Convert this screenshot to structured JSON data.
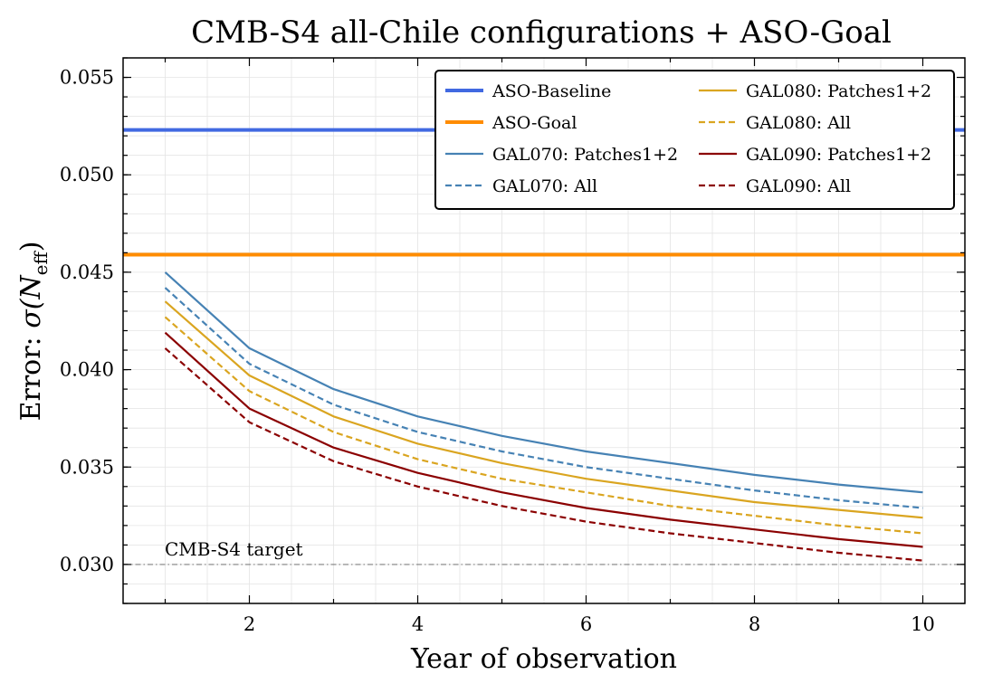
{
  "chart_data": {
    "type": "line",
    "title": "CMB-S4 all-Chile configurations + ASO-Goal",
    "xlabel": "Year of observation",
    "ylabel_prefix": "Error: ",
    "ylabel_math": "σ(N",
    "ylabel_sub": "eff",
    "ylabel_close": ")",
    "xlim": [
      0.5,
      10.5
    ],
    "ylim": [
      0.028,
      0.056
    ],
    "x_ticks": [
      2,
      4,
      6,
      8,
      10
    ],
    "y_ticks": [
      0.03,
      0.035,
      0.04,
      0.045,
      0.05,
      0.055
    ],
    "x_tick_labels": [
      "2",
      "4",
      "6",
      "8",
      "10"
    ],
    "y_tick_labels": [
      "0.030",
      "0.035",
      "0.040",
      "0.045",
      "0.050",
      "0.055"
    ],
    "grid": true,
    "legend_placement": "top-right",
    "x": [
      1,
      2,
      3,
      4,
      5,
      6,
      7,
      8,
      9,
      10
    ],
    "hlines": [
      {
        "name": "ASO-Baseline",
        "value": 0.0523,
        "color": "#4169e1",
        "style": "solid"
      },
      {
        "name": "ASO-Goal",
        "value": 0.0459,
        "color": "#ff8c00",
        "style": "solid"
      }
    ],
    "series": [
      {
        "name": "GAL070: Patches1+2",
        "color": "#4682b4",
        "style": "solid",
        "values": [
          0.045,
          0.0411,
          0.039,
          0.0376,
          0.0366,
          0.0358,
          0.0352,
          0.0346,
          0.0341,
          0.0337
        ]
      },
      {
        "name": "GAL070: All",
        "color": "#4682b4",
        "style": "dashed",
        "values": [
          0.0442,
          0.0403,
          0.0382,
          0.0368,
          0.0358,
          0.035,
          0.0344,
          0.0338,
          0.0333,
          0.0329
        ]
      },
      {
        "name": "GAL080: Patches1+2",
        "color": "#daa520",
        "style": "solid",
        "values": [
          0.0435,
          0.0397,
          0.0376,
          0.0362,
          0.0352,
          0.0344,
          0.0338,
          0.0332,
          0.0328,
          0.0324
        ]
      },
      {
        "name": "GAL080: All",
        "color": "#daa520",
        "style": "dashed",
        "values": [
          0.0427,
          0.0389,
          0.0368,
          0.0354,
          0.0344,
          0.0337,
          0.033,
          0.0325,
          0.032,
          0.0316
        ]
      },
      {
        "name": "GAL090: Patches1+2",
        "color": "#8b0000",
        "style": "solid",
        "values": [
          0.0419,
          0.038,
          0.036,
          0.0347,
          0.0337,
          0.0329,
          0.0323,
          0.0318,
          0.0313,
          0.0309
        ]
      },
      {
        "name": "GAL090: All",
        "color": "#8b0000",
        "style": "dashed",
        "values": [
          0.0411,
          0.0373,
          0.0353,
          0.034,
          0.033,
          0.0322,
          0.0316,
          0.0311,
          0.0306,
          0.0302
        ]
      }
    ],
    "target": {
      "label": "CMB-S4 target",
      "value": 0.03,
      "color": "#808080",
      "style": "dashdot"
    },
    "legend_order": [
      "ASO-Baseline",
      "ASO-Goal",
      "GAL070: Patches1+2",
      "GAL070: All",
      "GAL080: Patches1+2",
      "GAL080: All",
      "GAL090: Patches1+2",
      "GAL090: All"
    ]
  }
}
